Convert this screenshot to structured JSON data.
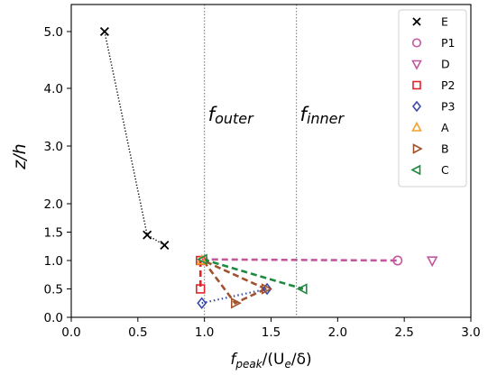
{
  "chart_data": {
    "type": "scatter",
    "title": "",
    "xlabel": {
      "base": "f",
      "sub": "peak",
      "rest": "/(U",
      "sub2": "e",
      "rest2": "/δ)"
    },
    "ylabel": {
      "base": "z/h"
    },
    "xlim": [
      0.0,
      3.0
    ],
    "ylim": [
      0.0,
      5.5
    ],
    "x_ticks": [
      0.0,
      0.5,
      1.0,
      1.5,
      2.0,
      2.5,
      3.0
    ],
    "x_tick_labels": [
      "0.0",
      "0.5",
      "1.0",
      "1.5",
      "2.0",
      "2.5",
      "3.0"
    ],
    "y_ticks": [
      0.0,
      0.5,
      1.0,
      1.5,
      2.0,
      3.0,
      4.0,
      5.0
    ],
    "y_tick_labels": [
      "0.0",
      "0.5",
      "1.0",
      "1.5",
      "2.0",
      "3.0",
      "4.0",
      "5.0"
    ],
    "y_scale": "nonlinear (0–2 expanded, 2–5 compressed)",
    "grid": false,
    "legend_position": "top-right",
    "vlines": [
      {
        "x": 1.0,
        "label_base": "f",
        "label_sub": "outer"
      },
      {
        "x": 1.69,
        "label_base": "f",
        "label_sub": "inner"
      }
    ],
    "series": [
      {
        "name": "E",
        "marker": "x",
        "color": "#000000",
        "line": "dotted",
        "points": [
          [
            0.25,
            5.0
          ],
          [
            0.57,
            1.45
          ],
          [
            0.7,
            1.27
          ]
        ]
      },
      {
        "name": "P1",
        "marker": "circle",
        "color": "#c2579e",
        "line": "dashed",
        "points": [
          [
            0.98,
            1.02
          ],
          [
            2.45,
            1.0
          ]
        ]
      },
      {
        "name": "D",
        "marker": "triangle-down",
        "color": "#c2579e",
        "line": "none",
        "points": [
          [
            2.71,
            1.0
          ]
        ]
      },
      {
        "name": "P2",
        "marker": "square",
        "color": "#e3232a",
        "line": "dashed",
        "points": [
          [
            0.97,
            1.0
          ],
          [
            0.97,
            0.5
          ]
        ]
      },
      {
        "name": "P3",
        "marker": "diamond",
        "color": "#3b4aa8",
        "line": "dotted",
        "points": [
          [
            0.98,
            0.25
          ],
          [
            1.47,
            0.5
          ]
        ]
      },
      {
        "name": "A",
        "marker": "triangle-up",
        "color": "#f5a02a",
        "line": "none",
        "points": [
          [
            0.98,
            1.0
          ]
        ]
      },
      {
        "name": "B",
        "marker": "triangle-right",
        "color": "#a0522d",
        "line": "dashed",
        "points": [
          [
            1.46,
            0.5
          ],
          [
            0.99,
            1.0
          ],
          [
            1.23,
            0.25
          ],
          [
            1.46,
            0.5
          ]
        ]
      },
      {
        "name": "C",
        "marker": "triangle-left",
        "color": "#1f8a3f",
        "line": "dashed",
        "points": [
          [
            0.99,
            1.02
          ],
          [
            1.74,
            0.5
          ]
        ]
      }
    ],
    "colors": {
      "axis": "#000000",
      "vline": "#888888"
    }
  }
}
